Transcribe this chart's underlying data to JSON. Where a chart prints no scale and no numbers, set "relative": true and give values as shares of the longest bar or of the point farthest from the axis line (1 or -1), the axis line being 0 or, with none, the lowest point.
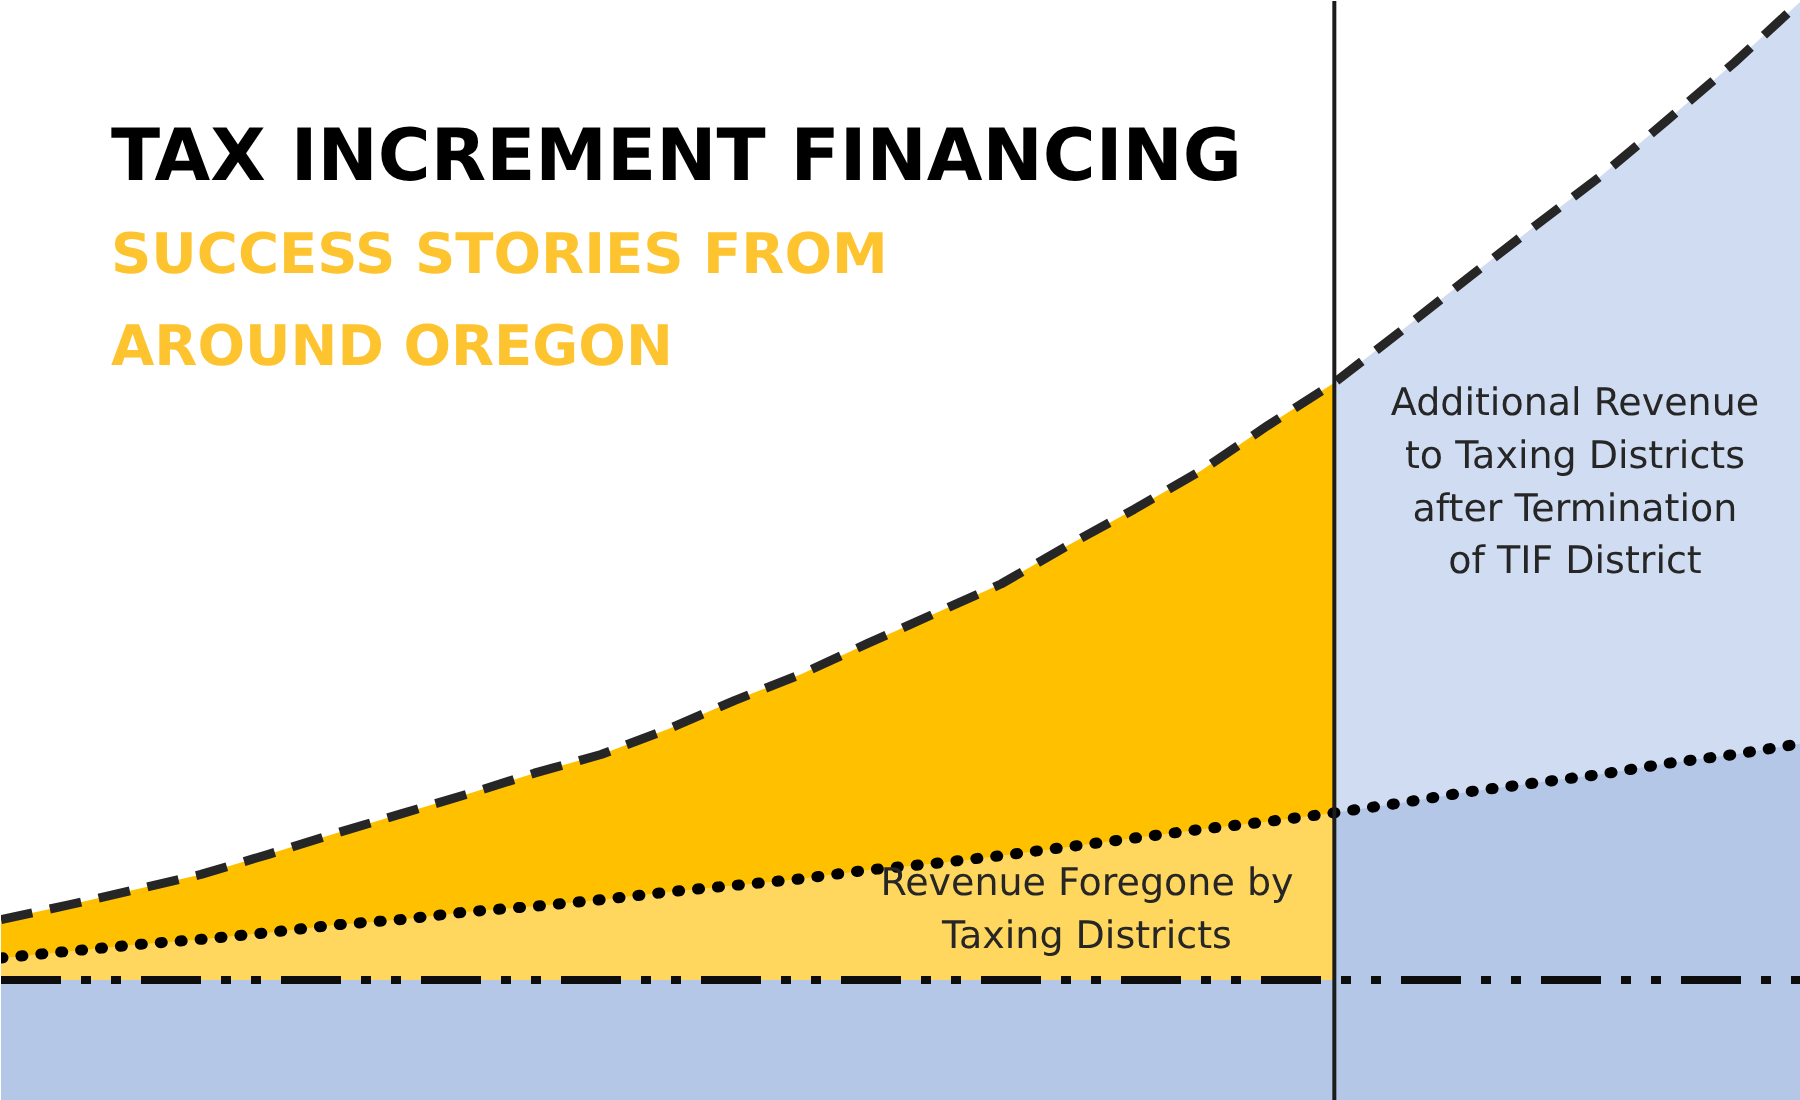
{
  "chart_data": {
    "type": "area",
    "title": "TAX INCREMENT FINANCING",
    "subtitle": "SUCCESS STORIES FROM AROUND OREGON",
    "annotations": [
      "Revenue Foregone by Taxing Districts",
      "Additional Revenue to Taxing Districts after Termination of TIF District"
    ],
    "categories": [
      null,
      null,
      null,
      null,
      null,
      null,
      null,
      null,
      null,
      null,
      null,
      null,
      null,
      null,
      null,
      null,
      null,
      null,
      null,
      null,
      null,
      null,
      null,
      null,
      null,
      null,
      null,
      null
    ],
    "relative": true,
    "tick_labels": false,
    "grid": false,
    "series": [
      {
        "color": "#ffc000",
        "values": [
          0.165,
          0.178,
          0.192,
          0.206,
          0.224,
          0.243,
          0.261,
          0.279,
          0.298,
          0.315,
          0.338,
          0.364,
          0.388,
          0.416,
          0.443,
          0.47,
          0.505,
          0.538,
          0.573,
          0.614,
          0.653,
          null,
          null,
          null,
          null,
          null,
          null,
          null
        ]
      },
      {
        "color": "#d0dcf1",
        "values": [
          null,
          null,
          null,
          null,
          null,
          null,
          null,
          null,
          null,
          null,
          null,
          null,
          null,
          null,
          null,
          null,
          null,
          null,
          null,
          null,
          0.653,
          0.7,
          0.748,
          0.795,
          0.841,
          0.892,
          0.944,
          1.0
        ]
      },
      {
        "color": "#ffd75e",
        "values": [
          0.13,
          0.136,
          0.142,
          0.147,
          0.153,
          0.16,
          0.165,
          0.172,
          0.177,
          0.183,
          0.19,
          0.196,
          0.202,
          0.21,
          0.216,
          0.223,
          0.231,
          0.239,
          0.247,
          0.254,
          0.262,
          null,
          null,
          null,
          null,
          null,
          null,
          null
        ]
      },
      {
        "color": "#b4c7e7",
        "values": [
          null,
          null,
          null,
          null,
          null,
          null,
          null,
          null,
          null,
          null,
          null,
          null,
          null,
          null,
          null,
          null,
          null,
          null,
          null,
          null,
          0.262,
          0.271,
          0.281,
          0.289,
          0.297,
          0.307,
          0.315,
          0.325
        ]
      },
      {
        "type": "line",
        "color": "#262626",
        "line_style": "dashed",
        "values": [
          0.165,
          0.178,
          0.192,
          0.206,
          0.224,
          0.243,
          0.261,
          0.279,
          0.298,
          0.315,
          0.338,
          0.364,
          0.388,
          0.416,
          0.443,
          0.47,
          0.505,
          0.538,
          0.573,
          0.614,
          0.653,
          0.7,
          0.748,
          0.795,
          0.841,
          0.892,
          0.944,
          1.0
        ]
      },
      {
        "type": "line",
        "color": "#000000",
        "line_style": "dotted",
        "values": [
          0.13,
          0.136,
          0.142,
          0.147,
          0.153,
          0.16,
          0.165,
          0.172,
          0.177,
          0.183,
          0.19,
          0.196,
          0.202,
          0.21,
          0.216,
          0.223,
          0.231,
          0.239,
          0.247,
          0.254,
          0.262,
          0.271,
          0.281,
          0.289,
          0.297,
          0.307,
          0.315,
          0.325
        ]
      },
      {
        "type": "line",
        "color": "#0d0d0d",
        "line_style": "dashdot",
        "values": [
          0.11,
          0.11,
          0.11,
          0.11,
          0.11,
          0.11,
          0.11,
          0.11,
          0.11,
          0.11,
          0.11,
          0.11,
          0.11,
          0.11,
          0.11,
          0.11,
          0.11,
          0.11,
          0.11,
          0.11,
          0.11,
          0.11,
          0.11,
          0.11,
          0.11,
          0.11,
          0.11,
          0.11
        ]
      }
    ],
    "bands": [
      {
        "axis": "y",
        "from": 0,
        "to": 0.11,
        "color": "#b4c7e7"
      }
    ]
  }
}
